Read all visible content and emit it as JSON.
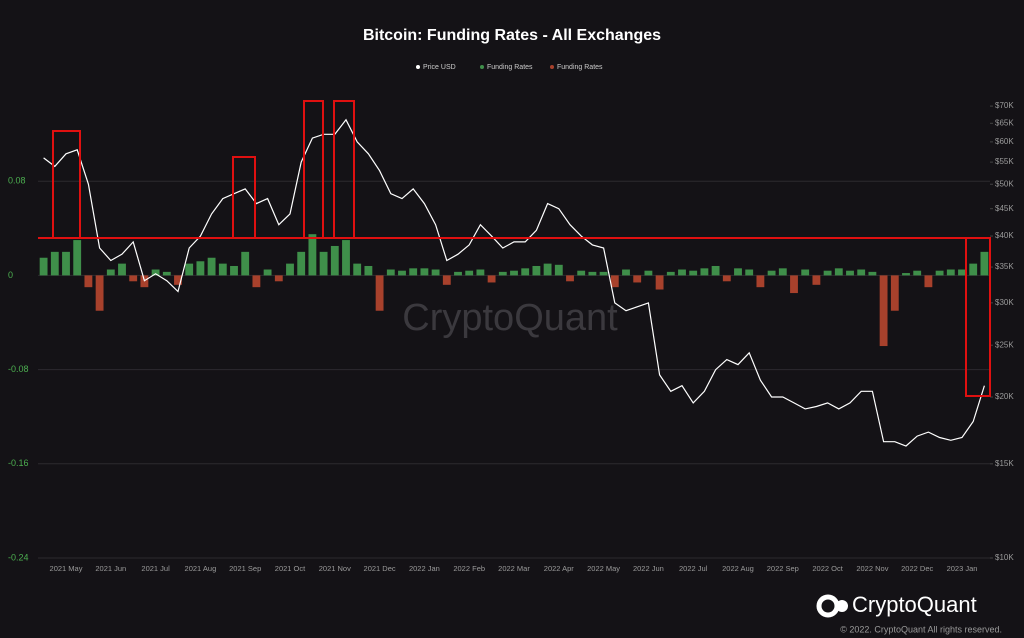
{
  "chart_data": {
    "type": "bar-line",
    "title": "Bitcoin: Funding Rates - All Exchanges",
    "watermark": "CryptoQuant",
    "brand": "CryptoQuant",
    "copyright": "© 2022. CryptoQuant All rights reserved.",
    "categories": [
      null,
      null,
      "2021 May",
      null,
      null,
      null,
      "2021 Jun",
      null,
      null,
      null,
      "2021 Jul",
      null,
      null,
      null,
      "2021 Aug",
      null,
      null,
      null,
      "2021 Sep",
      null,
      null,
      null,
      "2021 Oct",
      null,
      null,
      null,
      "2021 Nov",
      null,
      null,
      null,
      "2021 Dec",
      null,
      null,
      null,
      "2022 Jan",
      null,
      null,
      null,
      "2022 Feb",
      null,
      null,
      null,
      "2022 Mar",
      null,
      null,
      null,
      "2022 Apr",
      null,
      null,
      null,
      "2022 May",
      null,
      null,
      null,
      "2022 Jun",
      null,
      null,
      null,
      "2022 Jul",
      null,
      null,
      null,
      "2022 Aug",
      null,
      null,
      null,
      "2022 Sep",
      null,
      null,
      null,
      "2022 Oct",
      null,
      null,
      null,
      "2022 Nov",
      null,
      null,
      null,
      "2022 Dec",
      null,
      null,
      null,
      "2023 Jan",
      null,
      null
    ],
    "series": [
      {
        "name": "Price USD",
        "color": "#ffffff",
        "axis": "y2",
        "values": [
          56000,
          54000,
          57000,
          58000,
          50000,
          38000,
          36000,
          37000,
          39000,
          33000,
          34000,
          33000,
          31500,
          38000,
          40000,
          44000,
          47000,
          48000,
          49000,
          46000,
          47000,
          42000,
          44000,
          55000,
          61000,
          62000,
          62000,
          66000,
          60000,
          57000,
          53000,
          48000,
          47000,
          49000,
          46000,
          42000,
          36000,
          37000,
          38500,
          42000,
          40000,
          38000,
          39000,
          39000,
          41000,
          46000,
          45000,
          42000,
          40000,
          38500,
          38000,
          30000,
          29000,
          29500,
          30000,
          22000,
          20500,
          21000,
          19500,
          20500,
          22500,
          23500,
          23000,
          24200,
          21500,
          20000,
          20000,
          19500,
          19000,
          19200,
          19500,
          19000,
          19500,
          20500,
          20500,
          16500,
          16500,
          16200,
          16900,
          17200,
          16800,
          16600,
          16800,
          18000,
          21000
        ]
      },
      {
        "name": "Funding Rates",
        "color": "#3f8f4a",
        "values": [
          0.015,
          0.02,
          0.02,
          0.03,
          null,
          null,
          0.005,
          0.01,
          null,
          null,
          0.005,
          0.003,
          null,
          0.01,
          0.012,
          0.015,
          0.01,
          0.008,
          0.02,
          null,
          0.005,
          null,
          0.01,
          0.02,
          0.035,
          0.02,
          0.025,
          0.03,
          0.01,
          0.008,
          null,
          0.005,
          0.004,
          0.006,
          0.006,
          0.005,
          null,
          0.003,
          0.004,
          0.005,
          null,
          0.003,
          0.004,
          0.006,
          0.008,
          0.01,
          0.009,
          null,
          0.004,
          0.003,
          0.003,
          null,
          0.005,
          null,
          0.004,
          null,
          0.003,
          0.005,
          0.004,
          0.006,
          0.008,
          null,
          0.006,
          0.005,
          null,
          0.004,
          0.006,
          null,
          0.005,
          null,
          0.004,
          0.006,
          0.004,
          0.005,
          0.003,
          null,
          null,
          0.002,
          0.004,
          null,
          0.004,
          0.005,
          0.005,
          0.01,
          0.02
        ]
      },
      {
        "name": "Funding Rates",
        "color": "#a8412c",
        "values": [
          null,
          null,
          null,
          null,
          -0.01,
          -0.03,
          null,
          null,
          -0.005,
          -0.01,
          null,
          null,
          -0.008,
          null,
          null,
          null,
          null,
          null,
          null,
          -0.01,
          null,
          -0.005,
          null,
          null,
          null,
          null,
          null,
          null,
          null,
          null,
          -0.03,
          null,
          null,
          null,
          null,
          null,
          -0.008,
          null,
          null,
          null,
          -0.006,
          null,
          null,
          null,
          null,
          null,
          null,
          -0.005,
          null,
          null,
          null,
          -0.01,
          null,
          -0.006,
          null,
          -0.012,
          null,
          null,
          null,
          null,
          null,
          -0.005,
          null,
          null,
          -0.01,
          null,
          null,
          -0.015,
          null,
          -0.008,
          null,
          null,
          null,
          null,
          null,
          -0.06,
          -0.03,
          null,
          null,
          -0.01,
          null,
          null,
          null,
          null,
          null
        ]
      }
    ],
    "ylim": [
      -0.24,
      0.16
    ],
    "yticks": [
      -0.24,
      -0.16,
      -0.08,
      0,
      0.08
    ],
    "y2lim": [
      10000,
      76000
    ],
    "y2log": true,
    "y2ticks": [
      {
        "value": 10000,
        "label": "$10K"
      },
      {
        "value": 15000,
        "label": "$15K"
      },
      {
        "value": 20000,
        "label": "$20K"
      },
      {
        "value": 25000,
        "label": "$25K"
      },
      {
        "value": 30000,
        "label": "$30K"
      },
      {
        "value": 35000,
        "label": "$35K"
      },
      {
        "value": 40000,
        "label": "$40K"
      },
      {
        "value": 45000,
        "label": "$45K"
      },
      {
        "value": 50000,
        "label": "$50K"
      },
      {
        "value": 55000,
        "label": "$55K"
      },
      {
        "value": 60000,
        "label": "$60K"
      },
      {
        "value": 65000,
        "label": "$65K"
      },
      {
        "value": 70000,
        "label": "$70K"
      }
    ],
    "grid": true
  }
}
